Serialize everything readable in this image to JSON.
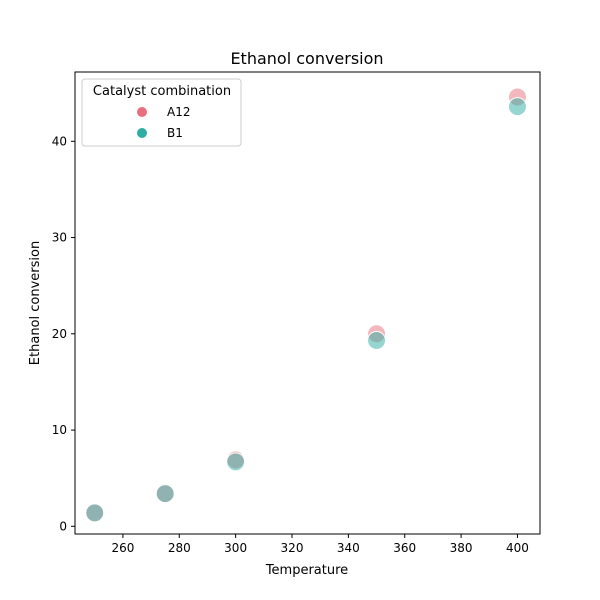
{
  "chart_data": {
    "type": "scatter",
    "title": "Ethanol conversion",
    "xlabel": "Temperature",
    "ylabel": "Ethanol conversion",
    "xlim": [
      243,
      408
    ],
    "ylim": [
      -0.8,
      47.2
    ],
    "xticks": [
      260,
      280,
      300,
      320,
      340,
      360,
      380,
      400
    ],
    "yticks": [
      0,
      10,
      20,
      30,
      40
    ],
    "grid": false,
    "legend": {
      "title": "Catalyst combination",
      "placement": "top-left"
    },
    "series": [
      {
        "name": "A12",
        "color": "#e8707e",
        "x": [
          250,
          275,
          300,
          350,
          400
        ],
        "y": [
          1.4,
          3.4,
          6.9,
          20.0,
          44.6
        ]
      },
      {
        "name": "B1",
        "color": "#2eaea2",
        "x": [
          250,
          275,
          300,
          350,
          400
        ],
        "y": [
          1.4,
          3.4,
          6.7,
          19.3,
          43.6
        ]
      }
    ]
  }
}
